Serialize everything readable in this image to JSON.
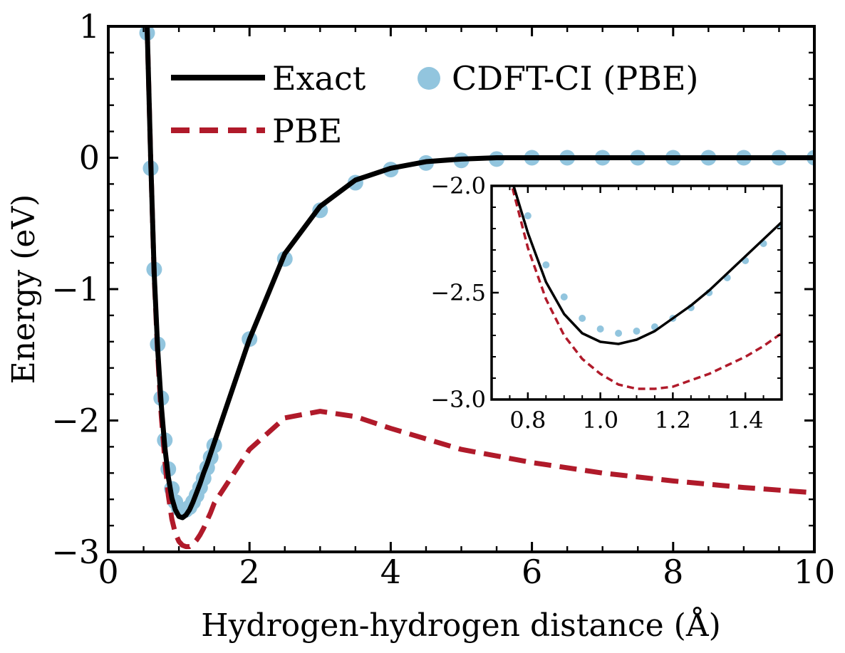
{
  "chart_data": [
    {
      "id": "main",
      "type": "line",
      "title": "",
      "xlabel": "Hydrogen-hydrogen distance (Å)",
      "ylabel": "Energy (eV)",
      "xlim": [
        0,
        10
      ],
      "ylim": [
        -3,
        1
      ],
      "xticks": [
        0,
        2,
        4,
        6,
        8,
        10
      ],
      "yticks": [
        -3,
        -2,
        -1,
        0,
        1
      ],
      "xtick_labels": [
        "0",
        "2",
        "4",
        "6",
        "8",
        "10"
      ],
      "ytick_labels": [
        "−3",
        "−2",
        "−1",
        "0",
        "1"
      ],
      "grid": false,
      "legend": "top-left",
      "series": [
        {
          "name": "Exact",
          "style": "solid",
          "color": "#000000",
          "x": [
            0.55,
            0.6,
            0.65,
            0.7,
            0.75,
            0.8,
            0.85,
            0.9,
            0.95,
            1.0,
            1.05,
            1.1,
            1.15,
            1.2,
            1.25,
            1.3,
            1.35,
            1.4,
            1.45,
            1.5,
            2.0,
            2.5,
            3.0,
            3.5,
            4.0,
            4.5,
            5.0,
            5.5,
            6.0,
            7.0,
            8.0,
            9.0,
            10.0
          ],
          "y": [
            1.0,
            0.0,
            -0.88,
            -1.46,
            -1.88,
            -2.2,
            -2.43,
            -2.59,
            -2.68,
            -2.73,
            -2.74,
            -2.72,
            -2.68,
            -2.62,
            -2.55,
            -2.48,
            -2.4,
            -2.33,
            -2.25,
            -2.17,
            -1.38,
            -0.73,
            -0.37,
            -0.17,
            -0.08,
            -0.03,
            -0.01,
            0.0,
            0.0,
            0.0,
            0.0,
            0.0,
            0.0
          ]
        },
        {
          "name": "PBE",
          "style": "dashed",
          "color": "#b01a2a",
          "x": [
            0.55,
            0.6,
            0.65,
            0.7,
            0.75,
            0.8,
            0.85,
            0.9,
            0.95,
            1.0,
            1.05,
            1.1,
            1.15,
            1.2,
            1.25,
            1.3,
            1.35,
            1.4,
            1.45,
            1.5,
            2.0,
            2.5,
            3.0,
            3.5,
            4.0,
            5.0,
            6.0,
            7.0,
            8.0,
            9.0,
            10.0
          ],
          "y": [
            1.0,
            0.0,
            -0.9,
            -1.5,
            -1.96,
            -2.3,
            -2.57,
            -2.75,
            -2.86,
            -2.92,
            -2.95,
            -2.96,
            -2.96,
            -2.94,
            -2.91,
            -2.87,
            -2.82,
            -2.76,
            -2.7,
            -2.63,
            -2.22,
            -1.98,
            -1.93,
            -1.97,
            -2.06,
            -2.22,
            -2.32,
            -2.4,
            -2.46,
            -2.51,
            -2.55
          ]
        },
        {
          "name": "CDFT-CI (PBE)",
          "style": "markers",
          "color": "#92c5de",
          "x": [
            0.55,
            0.6,
            0.65,
            0.7,
            0.75,
            0.8,
            0.85,
            0.9,
            0.95,
            1.0,
            1.05,
            1.1,
            1.15,
            1.2,
            1.25,
            1.3,
            1.35,
            1.4,
            1.45,
            1.5,
            2.0,
            2.5,
            3.0,
            3.5,
            4.0,
            4.5,
            5.0,
            5.5,
            6.0,
            6.5,
            7.0,
            7.5,
            8.0,
            8.5,
            9.0,
            9.5,
            10.0
          ],
          "y": [
            0.95,
            -0.08,
            -0.85,
            -1.42,
            -1.83,
            -2.15,
            -2.37,
            -2.52,
            -2.62,
            -2.67,
            -2.69,
            -2.68,
            -2.66,
            -2.62,
            -2.57,
            -2.51,
            -2.44,
            -2.36,
            -2.28,
            -2.19,
            -1.38,
            -0.77,
            -0.4,
            -0.19,
            -0.09,
            -0.04,
            -0.02,
            -0.01,
            0.0,
            0.0,
            0.0,
            0.0,
            0.0,
            0.0,
            0.0,
            0.0,
            0.0
          ]
        }
      ]
    },
    {
      "id": "inset",
      "type": "line",
      "title": "",
      "xlabel": "",
      "ylabel": "",
      "xlim": [
        0.7,
        1.5
      ],
      "ylim": [
        -3.0,
        -2.0
      ],
      "xticks": [
        0.8,
        1.0,
        1.2,
        1.4
      ],
      "yticks": [
        -3.0,
        -2.5,
        -2.0
      ],
      "xtick_labels": [
        "0.8",
        "1.0",
        "1.2",
        "1.4"
      ],
      "ytick_labels": [
        "−3.0",
        "−2.5",
        "−2.0"
      ],
      "grid": false,
      "legend": "none",
      "series": [
        {
          "name": "Exact",
          "style": "solid",
          "color": "#000000",
          "x": [
            0.75,
            0.8,
            0.85,
            0.9,
            0.95,
            1.0,
            1.05,
            1.1,
            1.15,
            1.2,
            1.25,
            1.3,
            1.35,
            1.4,
            1.45,
            1.5
          ],
          "y": [
            -1.94,
            -2.22,
            -2.45,
            -2.6,
            -2.69,
            -2.73,
            -2.74,
            -2.72,
            -2.68,
            -2.62,
            -2.56,
            -2.49,
            -2.41,
            -2.33,
            -2.25,
            -2.17
          ]
        },
        {
          "name": "PBE",
          "style": "dashed",
          "color": "#b01a2a",
          "x": [
            0.75,
            0.8,
            0.85,
            0.9,
            0.95,
            1.0,
            1.05,
            1.1,
            1.15,
            1.2,
            1.25,
            1.3,
            1.35,
            1.4,
            1.45,
            1.5
          ],
          "y": [
            -1.96,
            -2.29,
            -2.53,
            -2.7,
            -2.81,
            -2.88,
            -2.93,
            -2.95,
            -2.95,
            -2.94,
            -2.91,
            -2.88,
            -2.84,
            -2.8,
            -2.75,
            -2.69
          ]
        },
        {
          "name": "CDFT-CI (PBE)",
          "style": "markers",
          "color": "#92c5de",
          "x": [
            0.8,
            0.85,
            0.9,
            0.95,
            1.0,
            1.05,
            1.1,
            1.15,
            1.2,
            1.25,
            1.3,
            1.35,
            1.4,
            1.45,
            1.5
          ],
          "y": [
            -2.14,
            -2.37,
            -2.52,
            -2.62,
            -2.67,
            -2.69,
            -2.68,
            -2.66,
            -2.62,
            -2.57,
            -2.5,
            -2.43,
            -2.35,
            -2.27,
            -2.19
          ]
        }
      ]
    }
  ]
}
